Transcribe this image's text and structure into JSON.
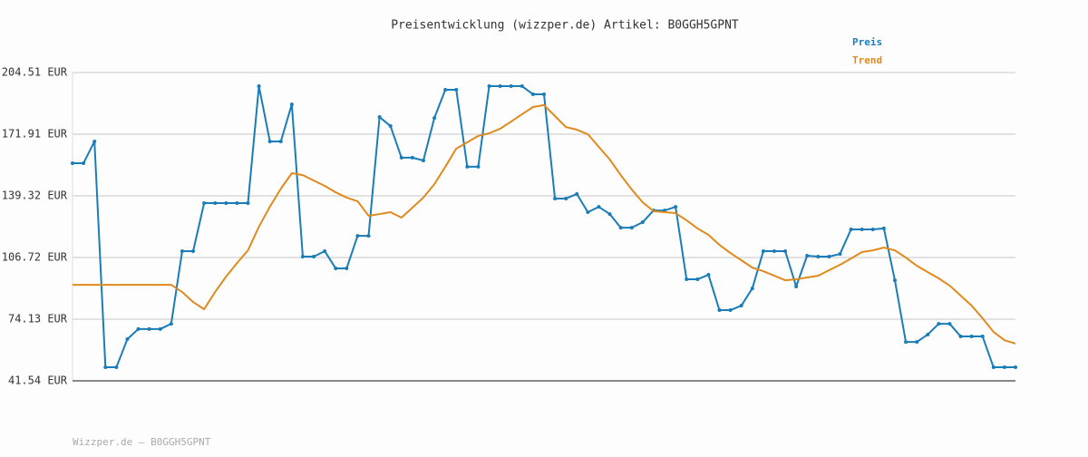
{
  "chart_data": {
    "type": "line",
    "title": "Preisentwicklung (wizzper.de) Artikel: B0GGH5GPNT",
    "footer": "Wizzper.de – B0GGH5GPNT",
    "legend": "top-right",
    "grid": true,
    "ylim": [
      41.54,
      204.51
    ],
    "yticks": [
      {
        "value": 41.54,
        "label": "41.54 EUR"
      },
      {
        "value": 74.13,
        "label": "74.13 EUR"
      },
      {
        "value": 106.72,
        "label": "106.72 EUR"
      },
      {
        "value": 139.32,
        "label": "139.32 EUR"
      },
      {
        "value": 171.91,
        "label": "171.91 EUR"
      },
      {
        "value": 204.51,
        "label": "204.51 EUR"
      }
    ],
    "series": [
      {
        "name": "Preis",
        "color": "#1a7db8",
        "markers": true,
        "values": [
          156.6,
          156.6,
          168.1,
          48.7,
          48.7,
          63.6,
          68.9,
          68.9,
          68.9,
          71.7,
          110.1,
          110.1,
          135.5,
          135.5,
          135.5,
          135.5,
          135.5,
          197.3,
          168.1,
          168.1,
          187.7,
          107.2,
          107.2,
          110.1,
          101.0,
          101.0,
          118.2,
          118.2,
          181.0,
          176.2,
          159.5,
          159.5,
          158.0,
          180.5,
          195.4,
          195.4,
          154.7,
          154.7,
          197.3,
          197.3,
          197.3,
          197.3,
          193.0,
          193.0,
          137.9,
          137.9,
          140.3,
          130.7,
          133.5,
          129.7,
          122.5,
          122.5,
          125.4,
          131.6,
          131.6,
          133.5,
          95.2,
          95.2,
          97.6,
          78.9,
          78.9,
          81.3,
          90.4,
          110.1,
          110.1,
          110.1,
          91.4,
          107.7,
          107.2,
          107.2,
          108.6,
          121.6,
          121.6,
          121.6,
          122.1,
          94.7,
          62.1,
          62.1,
          66.0,
          71.7,
          71.7,
          65.0,
          65.0,
          65.0,
          48.7,
          48.7,
          48.7
        ]
      },
      {
        "name": "Trend",
        "color": "#e08a1e",
        "markers": false,
        "values": [
          92.3,
          92.3,
          92.3,
          92.3,
          92.3,
          92.3,
          92.3,
          92.3,
          92.3,
          92.3,
          88.5,
          83.2,
          79.4,
          88.5,
          96.6,
          103.8,
          110.5,
          123.0,
          133.6,
          143.1,
          151.3,
          150.3,
          147.4,
          144.6,
          141.2,
          138.4,
          136.5,
          128.8,
          129.7,
          130.7,
          127.8,
          133.1,
          138.4,
          145.5,
          154.7,
          164.3,
          167.6,
          171.0,
          172.4,
          174.8,
          178.6,
          182.5,
          186.3,
          187.3,
          181.5,
          175.7,
          174.3,
          171.9,
          165.2,
          158.5,
          150.3,
          142.7,
          135.9,
          131.2,
          130.7,
          130.2,
          126.4,
          122.1,
          118.7,
          113.4,
          109.1,
          105.3,
          101.4,
          99.5,
          97.1,
          94.7,
          95.2,
          96.2,
          97.1,
          100.0,
          102.9,
          106.2,
          109.6,
          110.5,
          112.0,
          110.5,
          106.7,
          102.4,
          99.0,
          95.7,
          91.9,
          86.6,
          81.3,
          74.6,
          67.4,
          63.0,
          61.2
        ]
      }
    ]
  }
}
